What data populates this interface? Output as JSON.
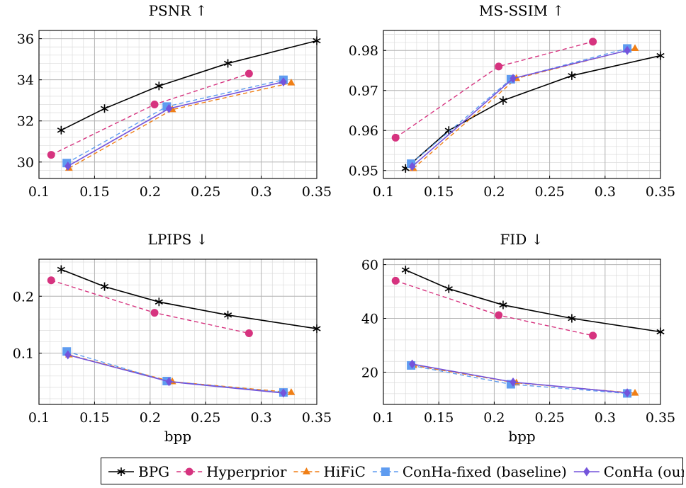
{
  "chart_data": [
    {
      "type": "line",
      "title": "PSNR ↑",
      "xlabel": "",
      "ylabel": "",
      "xlim": [
        0.1,
        0.35
      ],
      "ylim": [
        29.2,
        36.4
      ],
      "xticks": [
        0.1,
        0.15,
        0.2,
        0.25,
        0.3,
        0.35
      ],
      "xtick_labels": [
        "0.1",
        "0.15",
        "0.2",
        "0.25",
        "0.3",
        "0.35"
      ],
      "yticks": [
        30,
        32,
        34,
        36
      ],
      "ytick_labels": [
        "30",
        "32",
        "34",
        "36"
      ],
      "grid": true,
      "series": [
        {
          "name": "BPG",
          "x": [
            0.12,
            0.159,
            0.208,
            0.27,
            0.35
          ],
          "y": [
            31.55,
            32.6,
            33.7,
            34.8,
            35.9
          ]
        },
        {
          "name": "Hyperprior",
          "x": [
            0.111,
            0.204,
            0.289
          ],
          "y": [
            30.35,
            32.8,
            34.3
          ]
        },
        {
          "name": "HiFiC",
          "x": [
            0.127,
            0.22,
            0.327
          ],
          "y": [
            29.7,
            32.55,
            33.85
          ]
        },
        {
          "name": "ConHa-fixed (baseline)",
          "x": [
            0.125,
            0.215,
            0.32
          ],
          "y": [
            29.95,
            32.7,
            34.0
          ]
        },
        {
          "name": "ConHa (ours)",
          "x": [
            0.126,
            0.217,
            0.32
          ],
          "y": [
            29.8,
            32.6,
            33.9
          ]
        }
      ]
    },
    {
      "type": "line",
      "title": "MS-SSIM ↑",
      "xlabel": "",
      "ylabel": "",
      "xlim": [
        0.1,
        0.35
      ],
      "ylim": [
        0.948,
        0.985
      ],
      "xticks": [
        0.1,
        0.15,
        0.2,
        0.25,
        0.3,
        0.35
      ],
      "xtick_labels": [
        "0.1",
        "0.15",
        "0.2",
        "0.25",
        "0.3",
        "0.35"
      ],
      "yticks": [
        0.95,
        0.96,
        0.97,
        0.98
      ],
      "ytick_labels": [
        "0.95",
        "0.96",
        "0.97",
        "0.98"
      ],
      "grid": true,
      "series": [
        {
          "name": "BPG",
          "x": [
            0.12,
            0.159,
            0.208,
            0.27,
            0.35
          ],
          "y": [
            0.9505,
            0.96,
            0.9675,
            0.9737,
            0.9787
          ]
        },
        {
          "name": "Hyperprior",
          "x": [
            0.111,
            0.204,
            0.289
          ],
          "y": [
            0.9582,
            0.976,
            0.9822
          ]
        },
        {
          "name": "HiFiC",
          "x": [
            0.127,
            0.22,
            0.327
          ],
          "y": [
            0.9505,
            0.973,
            0.9805
          ]
        },
        {
          "name": "ConHa-fixed (baseline)",
          "x": [
            0.125,
            0.215,
            0.32
          ],
          "y": [
            0.9517,
            0.9728,
            0.9805
          ]
        },
        {
          "name": "ConHa (ours)",
          "x": [
            0.126,
            0.217,
            0.32
          ],
          "y": [
            0.951,
            0.973,
            0.98
          ]
        }
      ]
    },
    {
      "type": "line",
      "title": "LPIPS ↓",
      "xlabel": "bpp",
      "ylabel": "",
      "xlim": [
        0.1,
        0.35
      ],
      "ylim": [
        0.01,
        0.265
      ],
      "xticks": [
        0.1,
        0.15,
        0.2,
        0.25,
        0.3,
        0.35
      ],
      "xtick_labels": [
        "0.1",
        "0.15",
        "0.2",
        "0.25",
        "0.3",
        "0.35"
      ],
      "yticks": [
        0.1,
        0.2
      ],
      "ytick_labels": [
        "0.1",
        "0.2"
      ],
      "grid": true,
      "series": [
        {
          "name": "BPG",
          "x": [
            0.12,
            0.159,
            0.208,
            0.27,
            0.35
          ],
          "y": [
            0.247,
            0.217,
            0.19,
            0.167,
            0.143
          ]
        },
        {
          "name": "Hyperprior",
          "x": [
            0.111,
            0.204,
            0.289
          ],
          "y": [
            0.228,
            0.171,
            0.135
          ]
        },
        {
          "name": "HiFiC",
          "x": [
            0.127,
            0.22,
            0.327
          ],
          "y": [
            0.097,
            0.05,
            0.031
          ]
        },
        {
          "name": "ConHa-fixed (baseline)",
          "x": [
            0.125,
            0.215,
            0.32
          ],
          "y": [
            0.103,
            0.051,
            0.031
          ]
        },
        {
          "name": "ConHa (ours)",
          "x": [
            0.126,
            0.217,
            0.32
          ],
          "y": [
            0.097,
            0.05,
            0.03
          ]
        }
      ]
    },
    {
      "type": "line",
      "title": "FID ↓",
      "xlabel": "bpp",
      "ylabel": "",
      "xlim": [
        0.1,
        0.35
      ],
      "ylim": [
        8,
        62
      ],
      "xticks": [
        0.1,
        0.15,
        0.2,
        0.25,
        0.3,
        0.35
      ],
      "xtick_labels": [
        "0.1",
        "0.15",
        "0.2",
        "0.25",
        "0.3",
        "0.35"
      ],
      "yticks": [
        20,
        40,
        60
      ],
      "ytick_labels": [
        "20",
        "40",
        "60"
      ],
      "grid": true,
      "series": [
        {
          "name": "BPG",
          "x": [
            0.12,
            0.159,
            0.208,
            0.27,
            0.35
          ],
          "y": [
            58,
            51,
            45,
            40,
            35
          ]
        },
        {
          "name": "Hyperprior",
          "x": [
            0.111,
            0.204,
            0.289
          ],
          "y": [
            54,
            41.2,
            33.6
          ]
        },
        {
          "name": "HiFiC",
          "x": [
            0.127,
            0.22,
            0.327
          ],
          "y": [
            22.5,
            16,
            12.2
          ]
        },
        {
          "name": "ConHa-fixed (baseline)",
          "x": [
            0.125,
            0.215,
            0.32
          ],
          "y": [
            22.5,
            15.5,
            12.1
          ]
        },
        {
          "name": "ConHa (ours)",
          "x": [
            0.126,
            0.217,
            0.32
          ],
          "y": [
            23,
            16.3,
            12.3
          ]
        }
      ]
    }
  ],
  "legend": {
    "placement": "bottom",
    "items": [
      {
        "label": "BPG",
        "color": "#000000",
        "marker": "star",
        "dash": "solid"
      },
      {
        "label": "Hyperprior",
        "color": "#d6337f",
        "marker": "circle",
        "dash": "dashed"
      },
      {
        "label": "HiFiC",
        "color": "#f07f16",
        "marker": "triangle",
        "dash": "dashed"
      },
      {
        "label": "ConHa-fixed (baseline)",
        "color": "#5f9cf0",
        "marker": "square",
        "dash": "dashed"
      },
      {
        "label": "ConHa (ours)",
        "color": "#7454db",
        "marker": "diamond",
        "dash": "solid"
      }
    ]
  }
}
